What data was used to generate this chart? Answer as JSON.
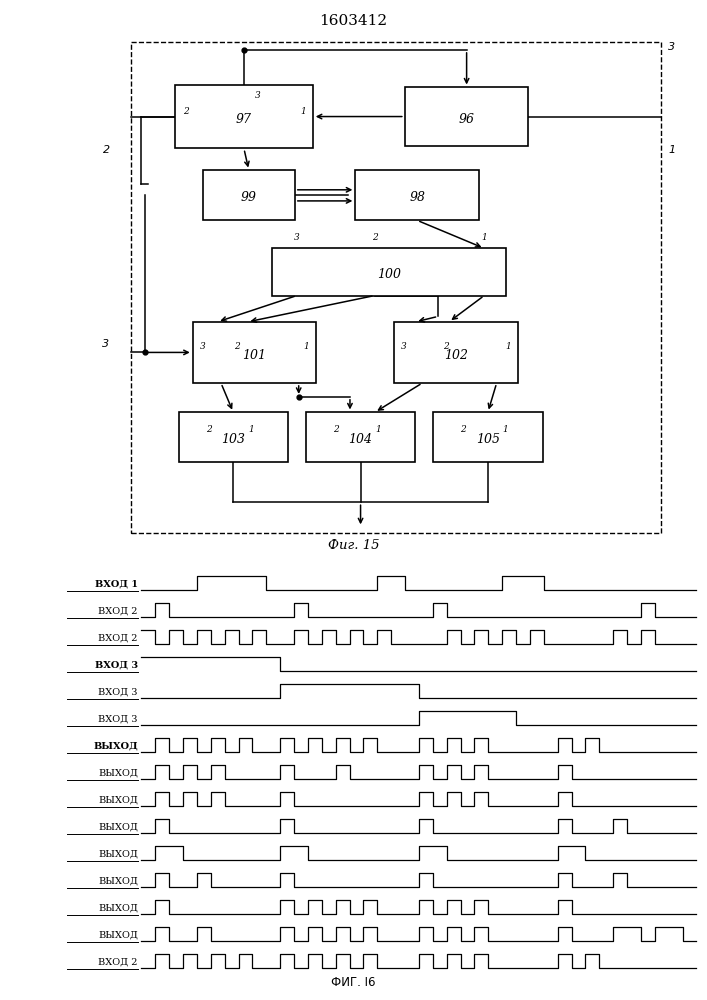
{
  "title": "1603412",
  "fig15_caption": "Фиг. 15",
  "fig16_caption": "ФИГ. I6",
  "waveforms": [
    {
      "label": "ВХОД 1",
      "bold": true,
      "signal": [
        0,
        0,
        0,
        0,
        1,
        1,
        1,
        1,
        1,
        0,
        0,
        0,
        0,
        0,
        0,
        0,
        0,
        1,
        1,
        0,
        0,
        0,
        0,
        0,
        0,
        0,
        1,
        1,
        1,
        0,
        0,
        0,
        0,
        0,
        0,
        0,
        0,
        0,
        0,
        0
      ]
    },
    {
      "label": "ВХОД 2",
      "bold": false,
      "signal": [
        0,
        1,
        0,
        0,
        0,
        0,
        0,
        0,
        0,
        0,
        0,
        1,
        0,
        0,
        0,
        0,
        0,
        0,
        0,
        0,
        0,
        1,
        0,
        0,
        0,
        0,
        0,
        0,
        0,
        0,
        0,
        0,
        0,
        0,
        0,
        0,
        1,
        0,
        0,
        0
      ]
    },
    {
      "label": "ВХОД 2",
      "bold": false,
      "signal": [
        1,
        0,
        1,
        0,
        1,
        0,
        1,
        0,
        1,
        0,
        0,
        1,
        0,
        1,
        0,
        1,
        0,
        1,
        0,
        0,
        0,
        0,
        1,
        0,
        1,
        0,
        1,
        0,
        1,
        0,
        0,
        0,
        0,
        0,
        1,
        0,
        1,
        0,
        0,
        0
      ]
    },
    {
      "label": "ВХОД 3",
      "bold": true,
      "signal": [
        1,
        1,
        1,
        1,
        1,
        1,
        1,
        1,
        1,
        1,
        0,
        0,
        0,
        0,
        0,
        0,
        0,
        0,
        0,
        0,
        0,
        0,
        0,
        0,
        0,
        0,
        0,
        0,
        0,
        0,
        0,
        0,
        0,
        0,
        0,
        0,
        0,
        0,
        0,
        0
      ]
    },
    {
      "label": "ВХОД 3",
      "bold": false,
      "signal": [
        0,
        0,
        0,
        0,
        0,
        0,
        0,
        0,
        0,
        0,
        1,
        1,
        1,
        1,
        1,
        1,
        1,
        1,
        1,
        1,
        0,
        0,
        0,
        0,
        0,
        0,
        0,
        0,
        0,
        0,
        0,
        0,
        0,
        0,
        0,
        0,
        0,
        0,
        0,
        0
      ]
    },
    {
      "label": "ВХОД 3",
      "bold": false,
      "signal": [
        0,
        0,
        0,
        0,
        0,
        0,
        0,
        0,
        0,
        0,
        0,
        0,
        0,
        0,
        0,
        0,
        0,
        0,
        0,
        0,
        1,
        1,
        1,
        1,
        1,
        1,
        1,
        0,
        0,
        0,
        0,
        0,
        0,
        0,
        0,
        0,
        0,
        0,
        0,
        0
      ]
    },
    {
      "label": "ВЫХОД",
      "bold": true,
      "signal": [
        0,
        1,
        0,
        1,
        0,
        1,
        0,
        1,
        0,
        0,
        1,
        0,
        1,
        0,
        1,
        0,
        1,
        0,
        0,
        0,
        1,
        0,
        1,
        0,
        1,
        0,
        0,
        0,
        0,
        0,
        1,
        0,
        1,
        0,
        0,
        0,
        0,
        0,
        0,
        0
      ]
    },
    {
      "label": "ВЫХОД",
      "bold": false,
      "signal": [
        0,
        1,
        0,
        1,
        0,
        1,
        0,
        0,
        0,
        0,
        1,
        0,
        0,
        0,
        1,
        0,
        0,
        0,
        0,
        0,
        1,
        0,
        1,
        0,
        1,
        0,
        0,
        0,
        0,
        0,
        1,
        0,
        0,
        0,
        0,
        0,
        0,
        0,
        0,
        0
      ]
    },
    {
      "label": "ВЫХОД",
      "bold": false,
      "signal": [
        0,
        1,
        0,
        1,
        0,
        1,
        0,
        0,
        0,
        0,
        1,
        0,
        0,
        0,
        0,
        0,
        0,
        0,
        0,
        0,
        1,
        0,
        1,
        0,
        1,
        0,
        0,
        0,
        0,
        0,
        1,
        0,
        0,
        0,
        0,
        0,
        0,
        0,
        0,
        0
      ]
    },
    {
      "label": "ВЫХОД",
      "bold": false,
      "signal": [
        0,
        1,
        0,
        0,
        0,
        0,
        0,
        0,
        0,
        0,
        1,
        0,
        0,
        0,
        0,
        0,
        0,
        0,
        0,
        0,
        1,
        0,
        0,
        0,
        0,
        0,
        0,
        0,
        0,
        0,
        1,
        0,
        0,
        0,
        1,
        0,
        0,
        0,
        0,
        0
      ]
    },
    {
      "label": "ВЫХОД",
      "bold": false,
      "signal": [
        0,
        1,
        1,
        0,
        0,
        0,
        0,
        0,
        0,
        0,
        1,
        1,
        0,
        0,
        0,
        0,
        0,
        0,
        0,
        0,
        1,
        1,
        0,
        0,
        0,
        0,
        0,
        0,
        0,
        0,
        1,
        1,
        0,
        0,
        0,
        0,
        0,
        0,
        0,
        0
      ]
    },
    {
      "label": "ВЫХОД",
      "bold": false,
      "signal": [
        0,
        1,
        0,
        0,
        1,
        0,
        0,
        0,
        0,
        0,
        1,
        0,
        0,
        0,
        0,
        0,
        0,
        0,
        0,
        0,
        1,
        0,
        0,
        0,
        0,
        0,
        0,
        0,
        0,
        0,
        1,
        0,
        0,
        0,
        1,
        0,
        0,
        0,
        0,
        0
      ]
    },
    {
      "label": "ВЫХОД",
      "bold": false,
      "signal": [
        0,
        1,
        0,
        0,
        0,
        0,
        0,
        0,
        0,
        0,
        1,
        0,
        1,
        0,
        1,
        0,
        1,
        0,
        0,
        0,
        1,
        0,
        1,
        0,
        1,
        0,
        0,
        0,
        0,
        0,
        1,
        0,
        0,
        0,
        0,
        0,
        0,
        0,
        0,
        0
      ]
    },
    {
      "label": "ВЫХОД",
      "bold": false,
      "signal": [
        0,
        1,
        0,
        0,
        1,
        0,
        0,
        0,
        0,
        0,
        1,
        0,
        1,
        0,
        1,
        0,
        1,
        0,
        0,
        0,
        1,
        0,
        1,
        0,
        1,
        0,
        0,
        0,
        0,
        0,
        1,
        0,
        0,
        0,
        1,
        1,
        0,
        1,
        1,
        0
      ]
    },
    {
      "label": "ВХОД 2",
      "bold": false,
      "signal": [
        0,
        1,
        0,
        1,
        0,
        1,
        0,
        1,
        0,
        0,
        1,
        0,
        1,
        0,
        1,
        0,
        1,
        0,
        0,
        0,
        1,
        0,
        1,
        0,
        1,
        0,
        0,
        0,
        0,
        0,
        1,
        0,
        1,
        0,
        0,
        0,
        0,
        0,
        0,
        0
      ]
    }
  ]
}
